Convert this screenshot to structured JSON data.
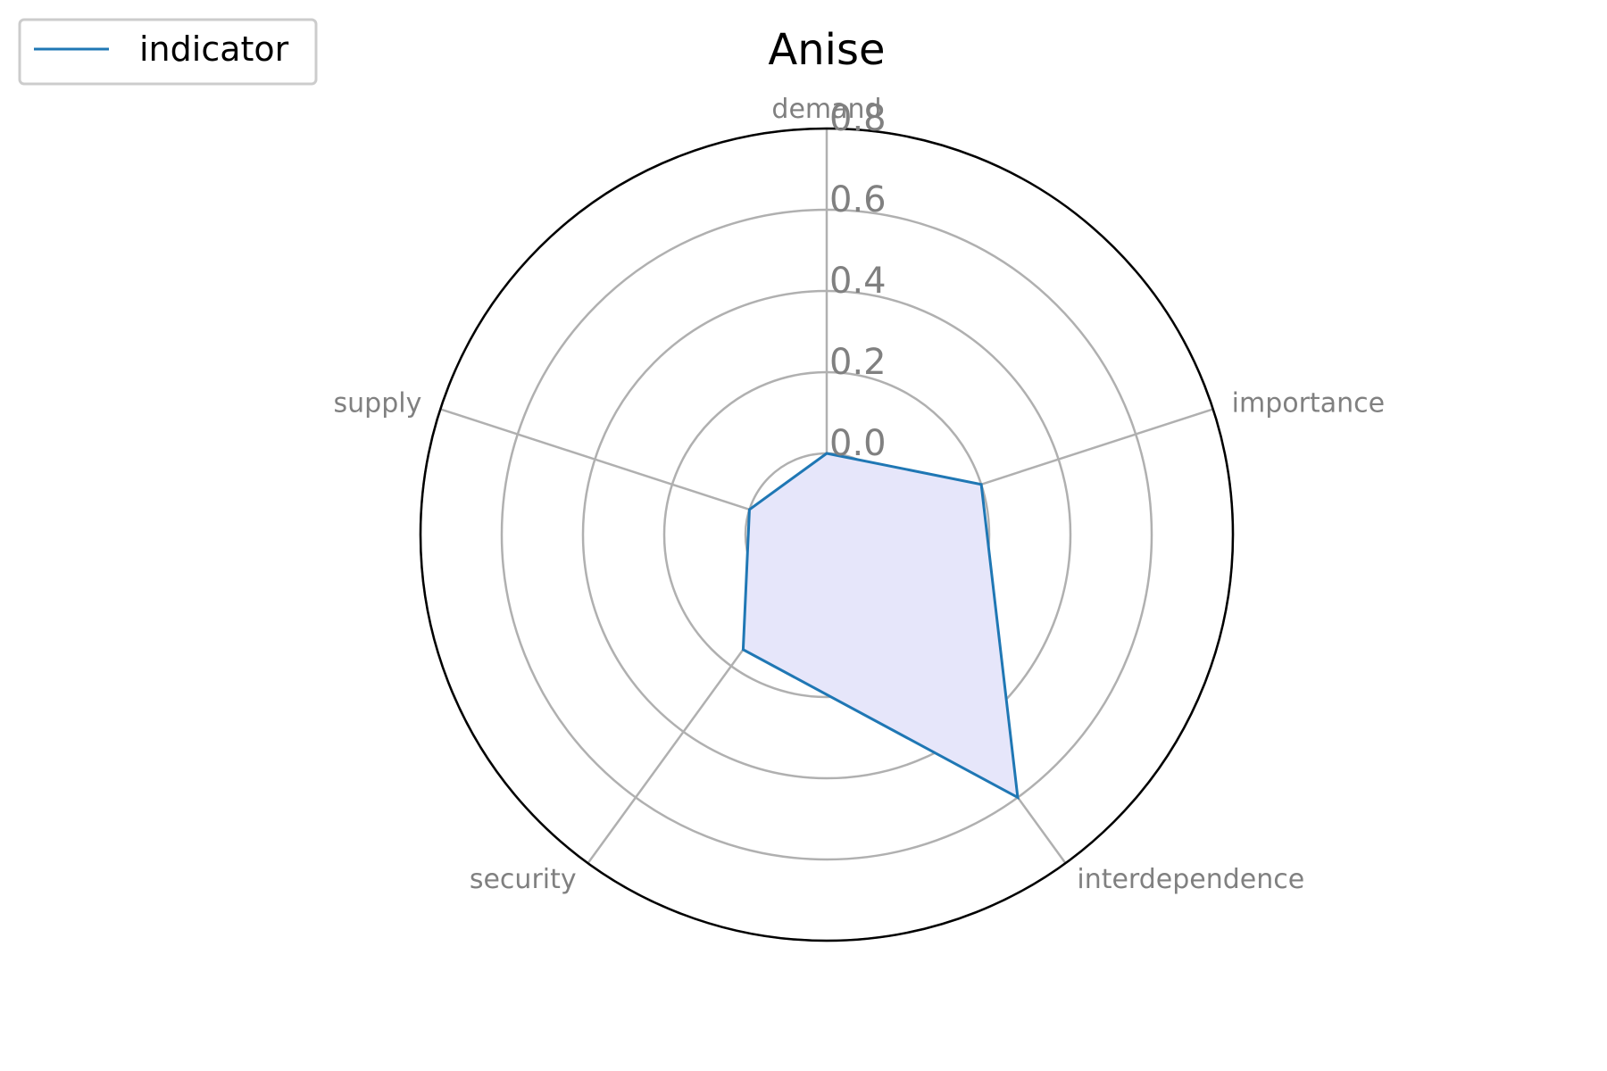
{
  "chart_data": {
    "type": "radar",
    "title": "Anise",
    "axes": [
      "demand",
      "importance",
      "interdependence",
      "security",
      "supply"
    ],
    "series": [
      {
        "name": "indicator",
        "values": [
          0.0,
          0.2,
          0.6,
          0.15,
          0.0
        ],
        "line_color": "#1f77b4",
        "fill_color": "#e6e6fa"
      }
    ],
    "rlim": [
      -0.2,
      0.8
    ],
    "rticks": [
      "0.0",
      "0.2",
      "0.4",
      "0.6",
      "0.8"
    ],
    "grid": true,
    "legend_position": "top-left"
  },
  "colors": {
    "grid": "#b0b0b0",
    "frame": "#000000",
    "label": "#808080"
  }
}
